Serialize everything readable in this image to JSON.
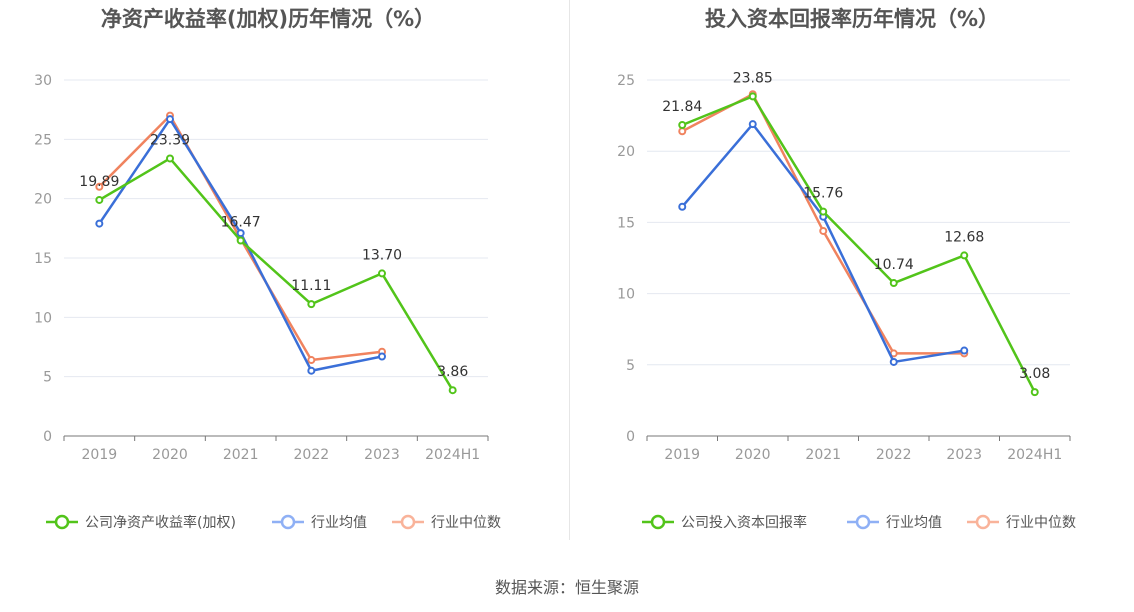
{
  "source": "数据来源：恒生聚源",
  "colors": {
    "company": "#52c41a",
    "avg": "#3a6fd8",
    "median": "#f0835f",
    "avg_legend": "#8fb0f5",
    "median_legend": "#f9b39a"
  },
  "chart_data": [
    {
      "type": "line",
      "title": "净资产收益率(加权)历年情况（%）",
      "categories": [
        "2019",
        "2020",
        "2021",
        "2022",
        "2023",
        "2024H1"
      ],
      "ylim": [
        0,
        30
      ],
      "yticks": [
        0,
        5,
        10,
        15,
        20,
        25,
        30
      ],
      "grid": true,
      "legend": "bottom",
      "series": [
        {
          "name": "公司净资产收益率(加权)",
          "key": "company",
          "values": [
            19.89,
            23.39,
            16.47,
            11.11,
            13.7,
            3.86
          ],
          "labels": [
            "19.89",
            "23.39",
            "16.47",
            "11.11",
            "13.70",
            "3.86"
          ]
        },
        {
          "name": "行业均值",
          "key": "avg",
          "values": [
            17.9,
            26.7,
            17.1,
            5.5,
            6.7,
            null
          ]
        },
        {
          "name": "行业中位数",
          "key": "median",
          "values": [
            21.0,
            27.0,
            16.6,
            6.4,
            7.1,
            null
          ]
        }
      ]
    },
    {
      "type": "line",
      "title": "投入资本回报率历年情况（%）",
      "categories": [
        "2019",
        "2020",
        "2021",
        "2022",
        "2023",
        "2024H1"
      ],
      "ylim": [
        0,
        25
      ],
      "yticks": [
        0,
        5,
        10,
        15,
        20,
        25
      ],
      "grid": true,
      "legend": "bottom",
      "series": [
        {
          "name": "公司投入资本回报率",
          "key": "company",
          "values": [
            21.84,
            23.85,
            15.76,
            10.74,
            12.68,
            3.08
          ],
          "labels": [
            "21.84",
            "23.85",
            "15.76",
            "10.74",
            "12.68",
            "3.08"
          ]
        },
        {
          "name": "行业均值",
          "key": "avg",
          "values": [
            16.1,
            21.9,
            15.4,
            5.2,
            6.0,
            null
          ]
        },
        {
          "name": "行业中位数",
          "key": "median",
          "values": [
            21.4,
            24.0,
            14.4,
            5.8,
            5.8,
            null
          ]
        }
      ]
    }
  ]
}
